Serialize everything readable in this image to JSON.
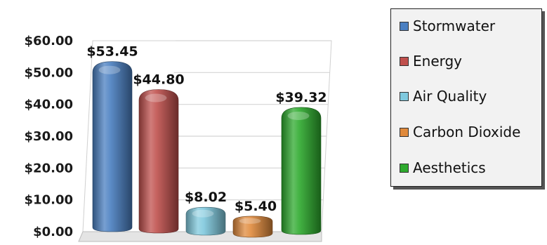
{
  "chart_data": {
    "type": "bar",
    "title": "",
    "xlabel": "",
    "ylabel": "",
    "ylim": [
      0,
      60
    ],
    "y_tick_labels": [
      "$0.00",
      "$10.00",
      "$20.00",
      "$30.00",
      "$40.00",
      "$50.00",
      "$60.00"
    ],
    "y_ticks": [
      0,
      10,
      20,
      30,
      40,
      50,
      60
    ],
    "grid": true,
    "legend_position": "right",
    "series": [
      {
        "name": "Stormwater",
        "value": 53.45,
        "label": "$53.45",
        "color": "#4a7fc1"
      },
      {
        "name": "Energy",
        "value": 44.8,
        "label": "$44.80",
        "color": "#c0504d"
      },
      {
        "name": "Air Quality",
        "value": 8.02,
        "label": "$8.02",
        "color": "#7fc9de"
      },
      {
        "name": "Carbon Dioxide",
        "value": 5.4,
        "label": "$5.40",
        "color": "#e08a3c"
      },
      {
        "name": "Aesthetics",
        "value": 39.32,
        "label": "$39.32",
        "color": "#2eaa2e"
      }
    ]
  },
  "legend": {
    "items": [
      {
        "label": "Stormwater",
        "color": "#4a7fc1"
      },
      {
        "label": "Energy",
        "color": "#c0504d"
      },
      {
        "label": "Air Quality",
        "color": "#7fc9de"
      },
      {
        "label": "Carbon Dioxide",
        "color": "#e08a3c"
      },
      {
        "label": "Aesthetics",
        "color": "#2eaa2e"
      }
    ]
  }
}
